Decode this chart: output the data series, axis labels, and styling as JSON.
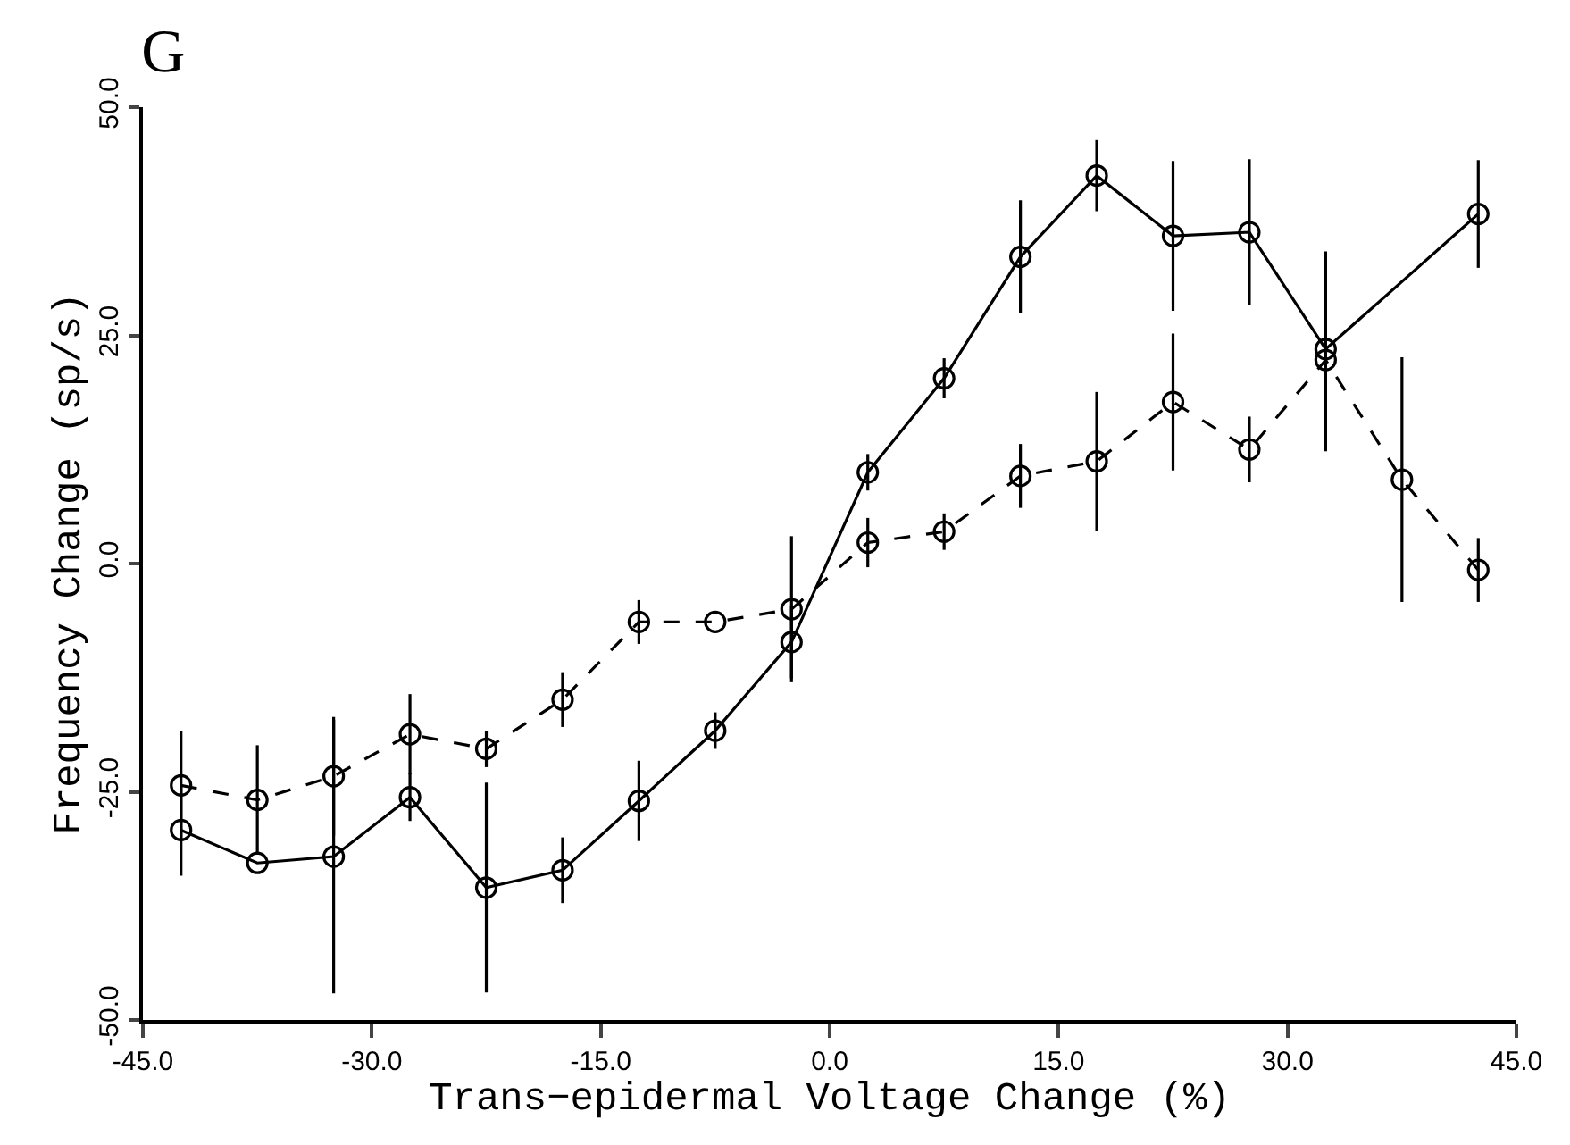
{
  "chart_data": {
    "type": "line",
    "title": "G",
    "xlabel": "Trans−epidermal Voltage Change (%)",
    "ylabel": "Frequency Change (sp/s)",
    "xlim": [
      -45,
      45
    ],
    "xticks": [
      {
        "value": -45,
        "label": "-45.0"
      },
      {
        "value": -30,
        "label": "-30.0"
      },
      {
        "value": -15,
        "label": "-15.0"
      },
      {
        "value": 0,
        "label": "0.0"
      },
      {
        "value": 15,
        "label": "15.0"
      },
      {
        "value": 30,
        "label": "30.0"
      },
      {
        "value": 45,
        "label": "45.0"
      }
    ],
    "ylim": [
      -50,
      50
    ],
    "yticks": [
      {
        "value": -50,
        "label": "-50.0"
      },
      {
        "value": -25,
        "label": "-25.0"
      },
      {
        "value": 0,
        "label": "0.0"
      },
      {
        "value": 25,
        "label": "25.0"
      },
      {
        "value": 50,
        "label": "50.0"
      }
    ],
    "grid": false,
    "marker": "circle",
    "series": [
      {
        "color": "#000000",
        "line_style": "solid",
        "x": [
          -42.5,
          -37.5,
          -32.5,
          -27.5,
          -22.5,
          -17.5,
          -12.5,
          -7.5,
          -2.5,
          2.5,
          7.5,
          12.5,
          17.5,
          22.5,
          27.5,
          32.5,
          42.5
        ],
        "values": [
          -29.2,
          -32.8,
          -32.1,
          -25.6,
          -35.5,
          -33.6,
          -26.0,
          -18.3,
          -8.6,
          10.0,
          20.3,
          33.6,
          42.5,
          35.9,
          36.3,
          23.5,
          38.3
        ],
        "errors": [
          5,
          null,
          15,
          2.6,
          11.5,
          3.6,
          4.4,
          2,
          4,
          2,
          2.2,
          6.2,
          3.9,
          8.2,
          8,
          10.7,
          5.9
        ]
      },
      {
        "color": "#000000",
        "line_style": "dashed",
        "x": [
          -42.5,
          -37.5,
          -32.5,
          -27.5,
          -22.5,
          -17.5,
          -12.5,
          -7.5,
          -2.5,
          2.5,
          7.5,
          12.5,
          17.5,
          22.5,
          27.5,
          32.5,
          37.5,
          42.5
        ],
        "values": [
          -24.3,
          -25.9,
          -23.3,
          -18.7,
          -20.3,
          -14.9,
          -6.4,
          -6.4,
          -5.0,
          2.3,
          3.5,
          9.6,
          11.2,
          17.7,
          12.5,
          22.3,
          9.2,
          -0.7
        ],
        "errors": [
          6,
          6,
          6.5,
          4.4,
          2,
          3,
          2.4,
          null,
          8,
          2.7,
          2,
          3.5,
          7.6,
          7.5,
          3.6,
          10,
          13.4,
          3.5
        ]
      }
    ]
  }
}
